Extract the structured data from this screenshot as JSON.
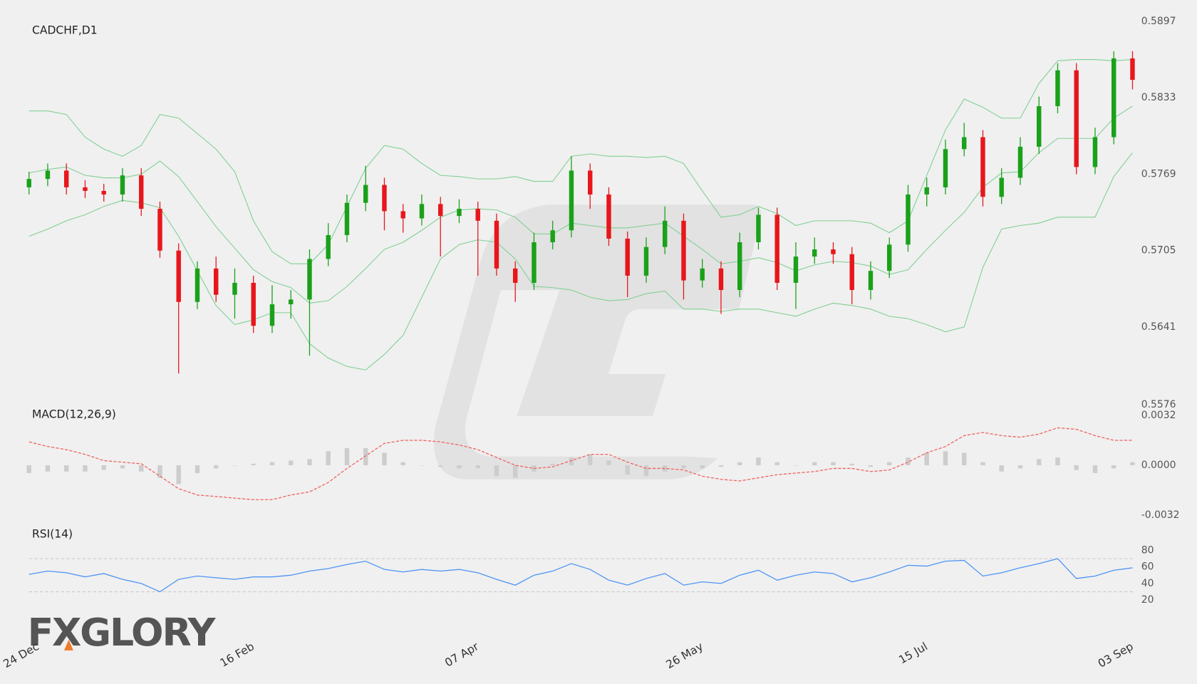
{
  "logo": "FXGLORY",
  "chart_data": [
    {
      "type": "candlestick",
      "title": "CADCHF,D1",
      "categories": [
        "24 Dec",
        null,
        null,
        null,
        null,
        null,
        null,
        null,
        null,
        null,
        null,
        null,
        "16 Feb",
        null,
        null,
        null,
        null,
        null,
        null,
        null,
        null,
        null,
        null,
        null,
        "07 Apr",
        null,
        null,
        null,
        null,
        null,
        null,
        null,
        null,
        null,
        null,
        null,
        "26 May",
        null,
        null,
        null,
        null,
        null,
        null,
        null,
        null,
        null,
        null,
        null,
        "15 Jul",
        null,
        null,
        null,
        null,
        null,
        null,
        null,
        null,
        null,
        null,
        "03 Sep"
      ],
      "open": [
        0.5758,
        0.5765,
        0.5772,
        0.5758,
        0.5755,
        0.5752,
        0.5768,
        0.574,
        0.5705,
        0.5662,
        0.569,
        0.5668,
        0.5678,
        0.5642,
        0.566,
        0.5664,
        0.5698,
        0.5718,
        0.5745,
        0.576,
        0.5738,
        0.5732,
        0.5744,
        0.5734,
        0.574,
        0.573,
        0.569,
        0.5678,
        0.5712,
        0.5722,
        0.5772,
        0.5752,
        0.5715,
        0.5684,
        0.5708,
        0.573,
        0.568,
        0.569,
        0.5672,
        0.5712,
        0.5735,
        0.5678,
        0.57,
        0.5706,
        0.5702,
        0.5672,
        0.5688,
        0.571,
        0.5752,
        0.5758,
        0.579,
        0.58,
        0.575,
        0.5766,
        0.5792,
        0.5826,
        0.5856,
        0.5775,
        0.58,
        0.5866
      ],
      "high": [
        0.5771,
        0.5778,
        0.5778,
        0.5764,
        0.5761,
        0.5774,
        0.5774,
        0.5746,
        0.5711,
        0.5696,
        0.57,
        0.569,
        0.5684,
        0.5676,
        0.5672,
        0.5706,
        0.5728,
        0.5752,
        0.5776,
        0.5766,
        0.5744,
        0.5752,
        0.575,
        0.5748,
        0.5746,
        0.5736,
        0.5696,
        0.572,
        0.573,
        0.5784,
        0.5778,
        0.5758,
        0.5721,
        0.5716,
        0.5742,
        0.5736,
        0.5698,
        0.5696,
        0.572,
        0.5741,
        0.5741,
        0.5712,
        0.5716,
        0.5712,
        0.5708,
        0.5696,
        0.5716,
        0.576,
        0.5766,
        0.5798,
        0.5812,
        0.5806,
        0.5774,
        0.58,
        0.5834,
        0.5862,
        0.5862,
        0.5808,
        0.5872,
        0.5872
      ],
      "low": [
        0.5752,
        0.5759,
        0.5752,
        0.5749,
        0.5746,
        0.5746,
        0.5734,
        0.5699,
        0.5602,
        0.5656,
        0.5662,
        0.5648,
        0.5636,
        0.5636,
        0.5648,
        0.5617,
        0.5692,
        0.5712,
        0.5738,
        0.5722,
        0.572,
        0.5726,
        0.57,
        0.5728,
        0.5684,
        0.5684,
        0.5662,
        0.5672,
        0.5706,
        0.5716,
        0.574,
        0.5709,
        0.5666,
        0.5678,
        0.5702,
        0.5664,
        0.5674,
        0.5652,
        0.5666,
        0.5706,
        0.5672,
        0.5656,
        0.5694,
        0.5694,
        0.566,
        0.5664,
        0.5682,
        0.5704,
        0.5742,
        0.5752,
        0.5784,
        0.5742,
        0.5744,
        0.576,
        0.5786,
        0.582,
        0.5769,
        0.5769,
        0.5794,
        0.584
      ],
      "close": [
        0.5765,
        0.5772,
        0.5758,
        0.5755,
        0.5752,
        0.5768,
        0.574,
        0.5705,
        0.5662,
        0.569,
        0.5668,
        0.5678,
        0.5642,
        0.566,
        0.5664,
        0.5698,
        0.5718,
        0.5745,
        0.576,
        0.5738,
        0.5732,
        0.5744,
        0.5734,
        0.574,
        0.573,
        0.569,
        0.5678,
        0.5712,
        0.5722,
        0.5772,
        0.5752,
        0.5715,
        0.5684,
        0.5708,
        0.573,
        0.568,
        0.569,
        0.5672,
        0.5712,
        0.5735,
        0.5678,
        0.57,
        0.5706,
        0.5702,
        0.5672,
        0.5688,
        0.571,
        0.5752,
        0.5758,
        0.579,
        0.58,
        0.575,
        0.5766,
        0.5792,
        0.5826,
        0.5856,
        0.5775,
        0.58,
        0.5866,
        0.5848
      ],
      "upper_band": [
        0.5822,
        0.5822,
        0.5819,
        0.58,
        0.579,
        0.5784,
        0.5793,
        0.5819,
        0.5816,
        0.5803,
        0.579,
        0.5771,
        0.573,
        0.5704,
        0.5694,
        0.5694,
        0.571,
        0.5742,
        0.5774,
        0.5793,
        0.579,
        0.5778,
        0.5768,
        0.5767,
        0.5765,
        0.5765,
        0.5767,
        0.5763,
        0.5763,
        0.5784,
        0.5786,
        0.5784,
        0.5784,
        0.5783,
        0.5784,
        0.5778,
        0.5755,
        0.5733,
        0.5735,
        0.5742,
        0.5736,
        0.5726,
        0.573,
        0.573,
        0.573,
        0.5728,
        0.572,
        0.573,
        0.5768,
        0.5806,
        0.5832,
        0.5825,
        0.5816,
        0.5816,
        0.5845,
        0.5864,
        0.5865,
        0.5865,
        0.5864,
        0.5865
      ],
      "middle_band": [
        0.577,
        0.5773,
        0.5775,
        0.5768,
        0.5766,
        0.5766,
        0.5769,
        0.578,
        0.5767,
        0.5746,
        0.5725,
        0.5707,
        0.5689,
        0.5679,
        0.5674,
        0.5661,
        0.5663,
        0.5675,
        0.569,
        0.5706,
        0.5712,
        0.5722,
        0.5733,
        0.5739,
        0.574,
        0.5739,
        0.5733,
        0.5719,
        0.5719,
        0.5728,
        0.5726,
        0.5724,
        0.5724,
        0.5726,
        0.5728,
        0.5717,
        0.5706,
        0.5694,
        0.5696,
        0.5699,
        0.5695,
        0.5688,
        0.5693,
        0.5696,
        0.5695,
        0.5692,
        0.5685,
        0.5689,
        0.5706,
        0.5722,
        0.5737,
        0.5758,
        0.577,
        0.5771,
        0.5787,
        0.5799,
        0.5799,
        0.5799,
        0.5816,
        0.5826
      ],
      "lower_band": [
        0.5717,
        0.5723,
        0.573,
        0.5735,
        0.5742,
        0.5747,
        0.5745,
        0.5741,
        0.5717,
        0.5688,
        0.5659,
        0.5643,
        0.5647,
        0.5653,
        0.5653,
        0.5627,
        0.5615,
        0.5608,
        0.5605,
        0.5618,
        0.5634,
        0.5666,
        0.5698,
        0.571,
        0.5714,
        0.5712,
        0.5698,
        0.5675,
        0.5674,
        0.5672,
        0.5666,
        0.5663,
        0.5664,
        0.5669,
        0.5671,
        0.5656,
        0.5656,
        0.5654,
        0.5656,
        0.5656,
        0.5653,
        0.565,
        0.5656,
        0.5661,
        0.5659,
        0.5656,
        0.565,
        0.5648,
        0.5643,
        0.5637,
        0.5641,
        0.5691,
        0.5723,
        0.5726,
        0.5728,
        0.5733,
        0.5733,
        0.5733,
        0.5767,
        0.5787
      ],
      "up_color": "#1aa11a",
      "down_color": "#e8161b",
      "band_color": "#7fcf93",
      "ylim": [
        0.5576,
        0.5897
      ],
      "yticks": [
        0.5576,
        0.5641,
        0.5705,
        0.5769,
        0.5833,
        0.5897
      ]
    },
    {
      "type": "macd",
      "title": "MACD(12,26,9)",
      "macd": [
        0.0015,
        0.0012,
        0.001,
        0.0007,
        0.0003,
        0.0002,
        0.0001,
        -0.0007,
        -0.0015,
        -0.0019,
        -0.002,
        -0.0021,
        -0.0022,
        -0.0022,
        -0.0019,
        -0.0017,
        -0.0011,
        -0.0002,
        0.0006,
        0.0014,
        0.0016,
        0.0016,
        0.0015,
        0.0013,
        0.001,
        0.0005,
        0,
        -0.0002,
        -0.0001,
        0.0003,
        0.0007,
        0.0007,
        0.0002,
        -0.0002,
        -0.0002,
        -0.0003,
        -0.0007,
        -0.0009,
        -0.001,
        -0.0008,
        -0.0006,
        -0.0005,
        -0.0004,
        -0.0002,
        -0.0002,
        -0.0004,
        -0.0003,
        0.0002,
        0.0008,
        0.0012,
        0.0019,
        0.0021,
        0.0019,
        0.0018,
        0.002,
        0.0024,
        0.0023,
        0.0019,
        0.0016,
        0.0016
      ],
      "histogram": [
        -0.0005,
        -0.0004,
        -0.0004,
        -0.0004,
        -0.0003,
        -0.0002,
        -0.0004,
        -0.0008,
        -0.0012,
        -0.0005,
        -0.0002,
        0,
        0.0001,
        0.0002,
        0.0003,
        0.0004,
        0.0009,
        0.0011,
        0.0011,
        0.0008,
        0.0002,
        0,
        -0.0001,
        -0.0002,
        -0.0002,
        -0.0007,
        -0.0008,
        -0.0004,
        0.0001,
        0.0005,
        0.0007,
        0.0003,
        -0.0006,
        -0.0007,
        -0.0004,
        -0.0002,
        -0.0002,
        -0.0001,
        0.0002,
        0.0005,
        0.0002,
        0,
        0.0002,
        0.0002,
        0.0001,
        -0.0001,
        0.0002,
        0.0005,
        0.0008,
        0.0009,
        0.0008,
        0.0002,
        -0.0004,
        -0.0002,
        0.0004,
        0.0005,
        -0.0003,
        -0.0005,
        -0.0002,
        0.0002
      ],
      "line_color": "#f0625f",
      "histogram_color": "#cdcdcd",
      "ylim": [
        -0.0032,
        0.0032
      ],
      "yticks": [
        0.0032,
        {
          "value": 0,
          "label": "0.0000"
        },
        -0.0032
      ]
    },
    {
      "type": "line",
      "title": "RSI(14)",
      "values": [
        51,
        55,
        53,
        48,
        52,
        45,
        40,
        30,
        45,
        49,
        47,
        45,
        48,
        48,
        50,
        55,
        58,
        63,
        67,
        57,
        54,
        57,
        55,
        57,
        53,
        45,
        38,
        50,
        55,
        64,
        57,
        44,
        38,
        46,
        52,
        38,
        42,
        40,
        50,
        56,
        44,
        50,
        54,
        52,
        42,
        47,
        54,
        62,
        61,
        67,
        68,
        49,
        53,
        59,
        64,
        70,
        46,
        49,
        56,
        59
      ],
      "color": "#4d94f5",
      "levels": [
        70,
        30
      ],
      "ylim": [
        20,
        80
      ],
      "yticks": [
        80,
        60,
        40,
        20
      ]
    }
  ]
}
